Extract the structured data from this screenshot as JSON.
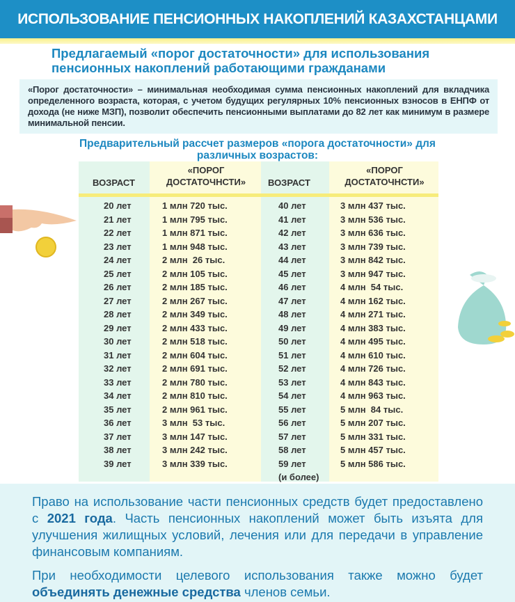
{
  "header": {
    "title": "ИСПОЛЬЗОВАНИЕ ПЕНСИОННЫХ НАКОПЛЕНИЙ КАЗАХСТАНЦАМИ"
  },
  "subtitle": "Предлагаемый «порог достаточности» для использования пенсионных накоплений работающими гражданами",
  "definition": "«Порог достаточности» – минимальная необходимая сумма пенсионных накоплений для вкладчика определенного возраста, которая, с учетом будущих регулярных 10% пенсионных взносов в ЕНПФ от дохода (не ниже МЗП), позволит обеспечить пенсионными выплатами до 82 лет как минимум в размере минимальной пенсии.",
  "table": {
    "title": "Предварительный рассчет размеров «порога достаточности» для различных возрастов:",
    "headers": {
      "age": "ВОЗРАСТ",
      "threshold": "«ПОРОГ ДОСТАТОЧНСТИ»"
    },
    "left": [
      [
        "20 лет",
        "1 млн 720 тыс."
      ],
      [
        "21 лет",
        "1 млн 795 тыс."
      ],
      [
        "22 лет",
        "1 млн 871 тыс."
      ],
      [
        "23 лет",
        "1 млн 948 тыс."
      ],
      [
        "24 лет",
        "2 млн  26 тыс."
      ],
      [
        "25 лет",
        "2 млн 105 тыс."
      ],
      [
        "26 лет",
        "2 млн 185 тыс."
      ],
      [
        "27 лет",
        "2 млн 267 тыс."
      ],
      [
        "28 лет",
        "2 млн 349 тыс."
      ],
      [
        "29 лет",
        "2 млн 433 тыс."
      ],
      [
        "30 лет",
        "2 млн 518 тыс."
      ],
      [
        "31 лет",
        "2 млн 604 тыс."
      ],
      [
        "32 лет",
        "2 млн 691 тыс."
      ],
      [
        "33 лет",
        "2 млн 780 тыс."
      ],
      [
        "34 лет",
        "2 млн 810 тыс."
      ],
      [
        "35 лет",
        "2 млн 961 тыс."
      ],
      [
        "36 лет",
        "3 млн  53 тыс."
      ],
      [
        "37 лет",
        "3 млн 147 тыс."
      ],
      [
        "38 лет",
        "3 млн 242 тыс."
      ],
      [
        "39 лет",
        "3 млн 339 тыс."
      ]
    ],
    "right": [
      [
        "40 лет",
        "3 млн 437 тыс."
      ],
      [
        "41 лет",
        "3 млн 536 тыс."
      ],
      [
        "42 лет",
        "3 млн 636 тыс."
      ],
      [
        "43 лет",
        "3 млн 739 тыс."
      ],
      [
        "44 лет",
        "3 млн 842 тыс."
      ],
      [
        "45 лет",
        "3 млн 947 тыс."
      ],
      [
        "46 лет",
        "4 млн  54 тыс."
      ],
      [
        "47 лет",
        "4 млн 162 тыс."
      ],
      [
        "48 лет",
        "4 млн 271 тыс."
      ],
      [
        "49 лет",
        "4 млн 383 тыс."
      ],
      [
        "50 лет",
        "4 млн 495 тыс."
      ],
      [
        "51 лет",
        "4 млн 610 тыс."
      ],
      [
        "52 лет",
        "4 млн 726 тыс."
      ],
      [
        "53 лет",
        "4 млн 843 тыс."
      ],
      [
        "54 лет",
        "4 млн 963 тыс."
      ],
      [
        "55 лет",
        "5 млн  84 тыс."
      ],
      [
        "56 лет",
        "5 млн 207 тыс."
      ],
      [
        "57 лет",
        "5 млн 331 тыс."
      ],
      [
        "58 лет",
        "5 млн 457 тыс."
      ],
      [
        "59 лет",
        "5 млн 586 тыс."
      ]
    ],
    "last_note": "(и более)"
  },
  "bottom": {
    "p1_a": "Право на использование части пенсионных средств будет предоставлено с ",
    "p1_bold": "2021 года",
    "p1_b": ". Часть пенсионных накоплений может быть изъята для улучшения жилищных  условий, лечения или для передачи в управление финансовым компаниям.",
    "p2_a": "При необходимости целевого использования также можно будет ",
    "p2_bold": "объединять денежные средства",
    "p2_b": " членов семьи."
  },
  "colors": {
    "header": "#1d8fc6",
    "accent_text": "#1d88c0",
    "age_col": "#e3f6ec",
    "value_col": "#fdfbdc",
    "stripe": "#f7ec7a"
  },
  "icons": [
    "hand-with-coin-icon",
    "money-bag-icon"
  ]
}
